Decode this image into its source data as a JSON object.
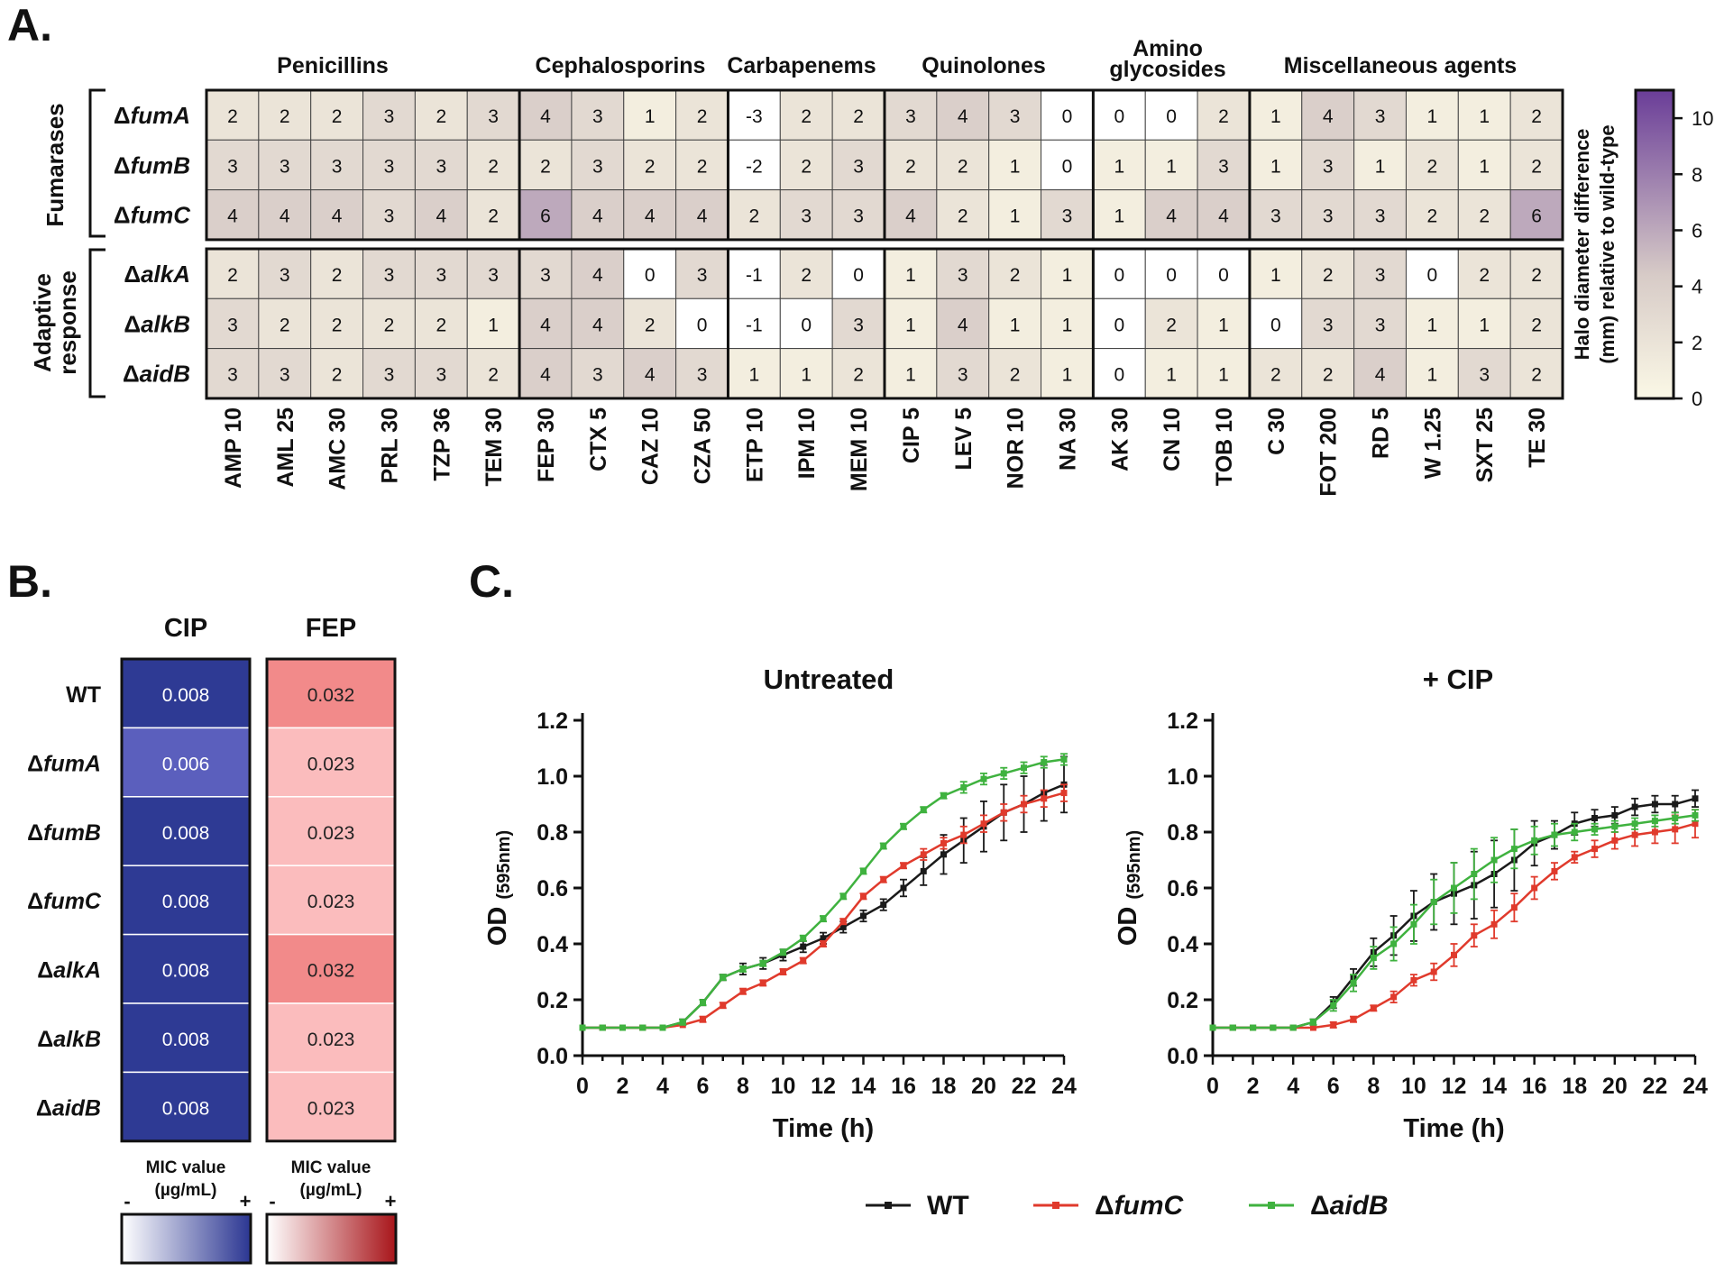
{
  "panels": {
    "a": "A.",
    "b": "B.",
    "c": "C."
  },
  "chart_data": [
    {
      "type": "heatmap",
      "panel": "A.",
      "class_labels": [
        "Penicillins",
        "Cephalosporins",
        "Carbapenems",
        "Quinolones",
        "Amino",
        "glycosides",
        "Miscellaneous agents"
      ],
      "group_labels": [
        "Fumarases",
        "Adaptive",
        "response"
      ],
      "rows": [
        "ΔfumA",
        "ΔfumB",
        "ΔfumC",
        "ΔalkA",
        "ΔalkB",
        "ΔaidB"
      ],
      "columns": [
        "AMP 10",
        "AML 25",
        "AMC 30",
        "PRL 30",
        "TZP 36",
        "TEM 30",
        "FEP 30",
        "CTX 5",
        "CAZ 10",
        "CZA 50",
        "ETP 10",
        "IPM 10",
        "MEM 10",
        "CIP 5",
        "LEV 5",
        "NOR 10",
        "NA 30",
        "AK 30",
        "CN 10",
        "TOB 10",
        "C 30",
        "FOT 200",
        "RD 5",
        "W 1.25",
        "SXT 25",
        "TE 30"
      ],
      "values": [
        [
          2,
          2,
          2,
          3,
          2,
          3,
          4,
          3,
          1,
          2,
          -3,
          2,
          2,
          3,
          4,
          3,
          0,
          0,
          0,
          2,
          1,
          4,
          3,
          1,
          1,
          2
        ],
        [
          3,
          3,
          3,
          3,
          3,
          2,
          2,
          3,
          2,
          2,
          -2,
          2,
          3,
          2,
          2,
          1,
          0,
          1,
          1,
          3,
          1,
          3,
          1,
          2,
          1,
          2
        ],
        [
          4,
          4,
          4,
          3,
          4,
          2,
          6,
          4,
          4,
          4,
          2,
          3,
          3,
          4,
          2,
          1,
          3,
          1,
          4,
          4,
          3,
          3,
          3,
          2,
          2,
          6
        ],
        [
          2,
          3,
          2,
          3,
          3,
          3,
          3,
          4,
          0,
          3,
          -1,
          2,
          0,
          1,
          3,
          2,
          1,
          0,
          0,
          0,
          1,
          2,
          3,
          0,
          2,
          2
        ],
        [
          3,
          2,
          2,
          2,
          2,
          1,
          4,
          4,
          2,
          0,
          -1,
          0,
          3,
          1,
          4,
          1,
          1,
          0,
          2,
          1,
          0,
          3,
          3,
          1,
          1,
          2
        ],
        [
          3,
          3,
          2,
          3,
          3,
          2,
          4,
          3,
          4,
          3,
          1,
          1,
          2,
          1,
          3,
          2,
          1,
          0,
          1,
          1,
          2,
          2,
          4,
          1,
          3,
          2
        ]
      ],
      "colorbar": {
        "label_line1": "Halo diameter difference",
        "label_line2": "(mm) relative to wild-type",
        "ticks": [
          "0",
          "2",
          "4",
          "6",
          "8",
          "10"
        ],
        "range": [
          0,
          11
        ],
        "color_low": "#fbf8e6",
        "color_mid": "#d7cbc7",
        "color_high": "#6a3d98"
      }
    },
    {
      "type": "heatmap",
      "panel": "B.",
      "columns": [
        "CIP",
        "FEP"
      ],
      "rows": [
        "WT",
        "ΔfumA",
        "ΔfumB",
        "ΔfumC",
        "ΔalkA",
        "ΔalkB",
        "ΔaidB"
      ],
      "values": [
        [
          "0.008",
          "0.032"
        ],
        [
          "0.006",
          "0.023"
        ],
        [
          "0.008",
          "0.023"
        ],
        [
          "0.008",
          "0.023"
        ],
        [
          "0.008",
          "0.032"
        ],
        [
          "0.008",
          "0.023"
        ],
        [
          "0.008",
          "0.023"
        ]
      ],
      "legend": {
        "line1": "MIC value",
        "line2": "(µg/mL)",
        "minus": "-",
        "plus": "+",
        "cip_colors": [
          "#ffffff",
          "#2b3692"
        ],
        "fep_colors": [
          "#ffffff",
          "#a8151a"
        ]
      },
      "cell_colors": {
        "cip_strong": "#2e3a94",
        "cip_light": "#5b5fbd",
        "fep_strong": "#f28a8a",
        "fep_light": "#fbbcbd"
      }
    },
    {
      "type": "line",
      "panel": "C.",
      "title": "Untreated",
      "xlabel": "Time (h)",
      "ylabel": "OD",
      "ylabel_sub": "(595nm)",
      "xlim": [
        0,
        24
      ],
      "ylim": [
        0,
        1.2
      ],
      "xticks": [
        "0",
        "2",
        "4",
        "6",
        "8",
        "10",
        "12",
        "14",
        "16",
        "18",
        "20",
        "22",
        "24"
      ],
      "yticks": [
        "0.0",
        "0.2",
        "0.4",
        "0.6",
        "0.8",
        "1.0",
        "1.2"
      ],
      "x": [
        0,
        1,
        2,
        3,
        4,
        5,
        6,
        7,
        8,
        9,
        10,
        11,
        12,
        13,
        14,
        15,
        16,
        17,
        18,
        19,
        20,
        21,
        22,
        23,
        24
      ],
      "series": [
        {
          "name": "WT",
          "color": "#1a1a1a",
          "values": [
            0.1,
            0.1,
            0.1,
            0.1,
            0.1,
            0.12,
            0.19,
            0.28,
            0.31,
            0.33,
            0.36,
            0.39,
            0.42,
            0.46,
            0.5,
            0.54,
            0.6,
            0.66,
            0.72,
            0.77,
            0.82,
            0.87,
            0.9,
            0.94,
            0.97
          ],
          "err": [
            0,
            0,
            0,
            0,
            0,
            0.01,
            0.01,
            0.01,
            0.02,
            0.02,
            0.02,
            0.02,
            0.02,
            0.02,
            0.02,
            0.02,
            0.03,
            0.05,
            0.07,
            0.08,
            0.09,
            0.1,
            0.1,
            0.1,
            0.1
          ]
        },
        {
          "name": "ΔfumC",
          "color": "#e03a2c",
          "values": [
            0.1,
            0.1,
            0.1,
            0.1,
            0.1,
            0.11,
            0.13,
            0.18,
            0.23,
            0.26,
            0.3,
            0.34,
            0.4,
            0.48,
            0.57,
            0.63,
            0.68,
            0.72,
            0.76,
            0.79,
            0.83,
            0.87,
            0.9,
            0.92,
            0.94
          ],
          "err": [
            0,
            0,
            0,
            0,
            0,
            0,
            0.01,
            0.01,
            0.01,
            0.01,
            0.01,
            0.01,
            0.01,
            0.01,
            0.01,
            0.01,
            0.01,
            0.02,
            0.02,
            0.03,
            0.03,
            0.03,
            0.03,
            0.03,
            0.03
          ]
        },
        {
          "name": "ΔaidB",
          "color": "#3fb23f",
          "values": [
            0.1,
            0.1,
            0.1,
            0.1,
            0.1,
            0.12,
            0.19,
            0.28,
            0.31,
            0.33,
            0.37,
            0.42,
            0.49,
            0.57,
            0.66,
            0.75,
            0.82,
            0.88,
            0.93,
            0.96,
            0.99,
            1.01,
            1.03,
            1.05,
            1.06
          ],
          "err": [
            0,
            0,
            0,
            0,
            0,
            0.01,
            0.01,
            0.01,
            0.01,
            0.01,
            0.01,
            0.01,
            0.01,
            0.01,
            0.01,
            0.01,
            0.01,
            0.01,
            0.01,
            0.02,
            0.02,
            0.02,
            0.02,
            0.02,
            0.02
          ]
        }
      ]
    },
    {
      "type": "line",
      "panel": "C.",
      "title": "+ CIP",
      "xlabel": "Time (h)",
      "ylabel": "OD",
      "ylabel_sub": "(595nm)",
      "xlim": [
        0,
        24
      ],
      "ylim": [
        0,
        1.2
      ],
      "xticks": [
        "0",
        "2",
        "4",
        "6",
        "8",
        "10",
        "12",
        "14",
        "16",
        "18",
        "20",
        "22",
        "24"
      ],
      "yticks": [
        "0.0",
        "0.2",
        "0.4",
        "0.6",
        "0.8",
        "1.0",
        "1.2"
      ],
      "x": [
        0,
        1,
        2,
        3,
        4,
        5,
        6,
        7,
        8,
        9,
        10,
        11,
        12,
        13,
        14,
        15,
        16,
        17,
        18,
        19,
        20,
        21,
        22,
        23,
        24
      ],
      "series": [
        {
          "name": "WT",
          "color": "#1a1a1a",
          "values": [
            0.1,
            0.1,
            0.1,
            0.1,
            0.1,
            0.12,
            0.19,
            0.28,
            0.37,
            0.43,
            0.5,
            0.55,
            0.58,
            0.61,
            0.65,
            0.7,
            0.76,
            0.79,
            0.83,
            0.85,
            0.86,
            0.89,
            0.9,
            0.9,
            0.92
          ],
          "err": [
            0,
            0,
            0,
            0,
            0,
            0.01,
            0.02,
            0.03,
            0.05,
            0.07,
            0.09,
            0.1,
            0.11,
            0.12,
            0.12,
            0.11,
            0.08,
            0.05,
            0.04,
            0.03,
            0.03,
            0.03,
            0.03,
            0.03,
            0.03
          ]
        },
        {
          "name": "ΔfumC",
          "color": "#e03a2c",
          "values": [
            0.1,
            0.1,
            0.1,
            0.1,
            0.1,
            0.1,
            0.11,
            0.13,
            0.17,
            0.21,
            0.27,
            0.3,
            0.36,
            0.43,
            0.47,
            0.53,
            0.6,
            0.66,
            0.71,
            0.74,
            0.77,
            0.79,
            0.8,
            0.81,
            0.83
          ],
          "err": [
            0,
            0,
            0,
            0,
            0,
            0,
            0.01,
            0.01,
            0.01,
            0.02,
            0.02,
            0.03,
            0.04,
            0.04,
            0.05,
            0.05,
            0.04,
            0.03,
            0.02,
            0.03,
            0.03,
            0.04,
            0.04,
            0.05,
            0.05
          ]
        },
        {
          "name": "ΔaidB",
          "color": "#3fb23f",
          "values": [
            0.1,
            0.1,
            0.1,
            0.1,
            0.1,
            0.12,
            0.18,
            0.26,
            0.35,
            0.4,
            0.47,
            0.55,
            0.6,
            0.65,
            0.7,
            0.74,
            0.77,
            0.79,
            0.8,
            0.81,
            0.82,
            0.83,
            0.84,
            0.85,
            0.86
          ],
          "err": [
            0,
            0,
            0,
            0,
            0,
            0.01,
            0.02,
            0.03,
            0.04,
            0.06,
            0.07,
            0.08,
            0.09,
            0.09,
            0.08,
            0.07,
            0.05,
            0.04,
            0.03,
            0.02,
            0.02,
            0.02,
            0.02,
            0.02,
            0.02
          ]
        }
      ]
    }
  ],
  "legend_c": [
    {
      "name": "WT",
      "color": "#1a1a1a"
    },
    {
      "name": "ΔfumC",
      "color": "#e03a2c"
    },
    {
      "name": "ΔaidB",
      "color": "#3fb23f"
    }
  ]
}
